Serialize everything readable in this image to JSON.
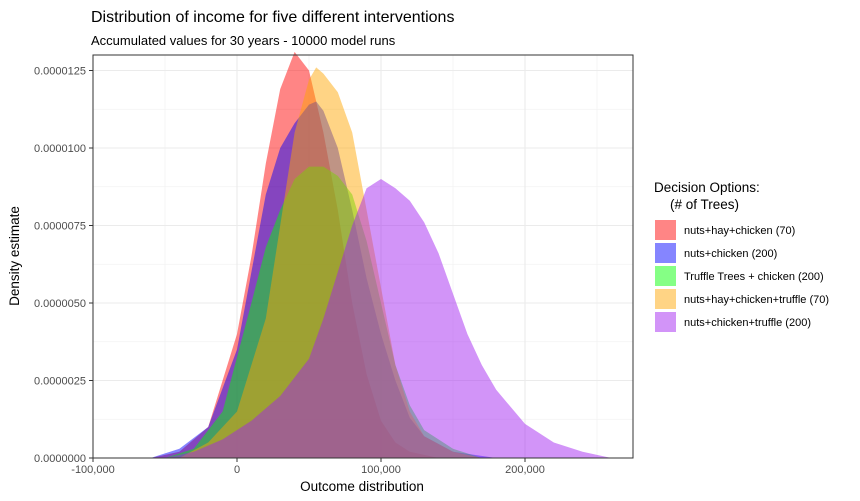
{
  "chart_data": {
    "type": "area",
    "title": "Distribution of income for five different interventions",
    "subtitle": "Accumulated values for 30 years - 10000 model runs",
    "xlabel": "Outcome distribution",
    "ylabel": "Density estimate",
    "xlim": [
      -100000,
      275000
    ],
    "ylim": [
      0,
      1.3e-05
    ],
    "x_ticks": [
      -100000,
      0,
      100000,
      200000
    ],
    "x_tick_labels": [
      "-100,000",
      "0",
      "100,000",
      "200,000"
    ],
    "y_ticks": [
      0,
      2.5e-06,
      5e-06,
      7.5e-06,
      1e-05,
      1.25e-05
    ],
    "y_tick_labels": [
      "0.0000000",
      "0.0000025",
      "0.0000050",
      "0.0000075",
      "0.0000100",
      "0.0000125"
    ],
    "grid": true,
    "legend": {
      "title": "Decision Options:\n(# of Trees)",
      "position": "right"
    },
    "series": [
      {
        "name": "nuts+hay+chicken (70)",
        "color": "#ff0000",
        "x": [
          -60000,
          -40000,
          -20000,
          0,
          10000,
          20000,
          30000,
          40000,
          50000,
          60000,
          70000,
          80000,
          90000,
          100000,
          110000,
          120000,
          140000
        ],
        "y": [
          0,
          2e-07,
          1e-06,
          4e-06,
          6.5e-06,
          9.5e-06,
          1.19e-05,
          1.31e-05,
          1.25e-05,
          1.05e-05,
          8e-06,
          5e-06,
          2.7e-06,
          1.2e-06,
          5e-07,
          2e-07,
          0
        ]
      },
      {
        "name": "nuts+chicken (200)",
        "color": "#0000ff",
        "x": [
          -60000,
          -40000,
          -20000,
          0,
          10000,
          20000,
          30000,
          40000,
          50000,
          55000,
          60000,
          70000,
          80000,
          90000,
          100000,
          110000,
          120000,
          130000,
          150000,
          180000
        ],
        "y": [
          0,
          3e-07,
          1e-06,
          3.5e-06,
          6e-06,
          8.5e-06,
          1e-05,
          1.08e-05,
          1.14e-05,
          1.15e-05,
          1.12e-05,
          1e-05,
          8e-06,
          5.8e-06,
          4e-06,
          2.5e-06,
          1.3e-06,
          7e-07,
          2e-07,
          0
        ]
      },
      {
        "name": "Truffle Trees + chicken (200)",
        "color": "#00ff00",
        "x": [
          -50000,
          -30000,
          -10000,
          10000,
          20000,
          30000,
          40000,
          50000,
          60000,
          70000,
          80000,
          90000,
          100000,
          110000,
          120000,
          130000,
          150000,
          170000
        ],
        "y": [
          0,
          3e-07,
          1.5e-06,
          5e-06,
          6.8e-06,
          8e-06,
          9e-06,
          9.4e-06,
          9.4e-06,
          9.1e-06,
          8.5e-06,
          7e-06,
          5e-06,
          3e-06,
          1.7e-06,
          9e-07,
          3e-07,
          0
        ]
      },
      {
        "name": "nuts+hay+chicken+truffle (70)",
        "color": "#ffa500",
        "x": [
          -40000,
          -20000,
          0,
          20000,
          30000,
          40000,
          50000,
          55000,
          60000,
          70000,
          80000,
          90000,
          100000,
          110000,
          120000,
          130000,
          150000,
          170000
        ],
        "y": [
          0,
          5e-07,
          1.5e-06,
          4.5e-06,
          7.5e-06,
          1.05e-05,
          1.22e-05,
          1.26e-05,
          1.24e-05,
          1.18e-05,
          1.05e-05,
          8e-06,
          5.5e-06,
          3e-06,
          1.5e-06,
          7e-07,
          2e-07,
          0
        ]
      },
      {
        "name": "nuts+chicken+truffle (200)",
        "color": "#a020f0",
        "x": [
          -50000,
          -30000,
          -10000,
          10000,
          30000,
          50000,
          60000,
          70000,
          80000,
          90000,
          100000,
          110000,
          120000,
          130000,
          140000,
          150000,
          160000,
          170000,
          180000,
          200000,
          220000,
          240000,
          260000
        ],
        "y": [
          0,
          2e-07,
          6e-07,
          1.2e-06,
          2e-06,
          3.2e-06,
          4.5e-06,
          6e-06,
          7.5e-06,
          8.7e-06,
          9e-06,
          8.7e-06,
          8.3e-06,
          7.6e-06,
          6.6e-06,
          5.3e-06,
          4e-06,
          3e-06,
          2.2e-06,
          1.1e-06,
          5e-07,
          2e-07,
          0
        ]
      }
    ]
  }
}
